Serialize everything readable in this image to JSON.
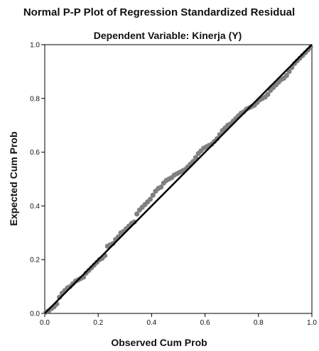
{
  "chart_data": {
    "type": "scatter",
    "title": "Normal P-P Plot of Regression Standardized Residual",
    "subtitle": "Dependent Variable: Kinerja (Y)",
    "xlabel": "Observed Cum Prob",
    "ylabel": "Expected Cum Prob",
    "xlim": [
      0.0,
      1.0
    ],
    "ylim": [
      0.0,
      1.0
    ],
    "x_ticks": [
      "0.0",
      "0.2",
      "0.4",
      "0.6",
      "0.8",
      "1.0"
    ],
    "y_ticks": [
      "0.0",
      "0.2",
      "0.4",
      "0.6",
      "0.8",
      "1.0"
    ],
    "grid": false,
    "reference_line": {
      "x": [
        0.0,
        1.0
      ],
      "y": [
        0.0,
        1.0
      ],
      "color": "#000000"
    },
    "point_color": "#808080",
    "points": [
      [
        0.005,
        0.005
      ],
      [
        0.015,
        0.01
      ],
      [
        0.025,
        0.018
      ],
      [
        0.035,
        0.025
      ],
      [
        0.045,
        0.035
      ],
      [
        0.055,
        0.06
      ],
      [
        0.065,
        0.075
      ],
      [
        0.075,
        0.085
      ],
      [
        0.085,
        0.095
      ],
      [
        0.095,
        0.1
      ],
      [
        0.105,
        0.11
      ],
      [
        0.115,
        0.12
      ],
      [
        0.125,
        0.125
      ],
      [
        0.135,
        0.13
      ],
      [
        0.145,
        0.135
      ],
      [
        0.155,
        0.15
      ],
      [
        0.165,
        0.16
      ],
      [
        0.175,
        0.17
      ],
      [
        0.185,
        0.18
      ],
      [
        0.195,
        0.19
      ],
      [
        0.205,
        0.2
      ],
      [
        0.215,
        0.205
      ],
      [
        0.225,
        0.215
      ],
      [
        0.235,
        0.25
      ],
      [
        0.245,
        0.255
      ],
      [
        0.255,
        0.26
      ],
      [
        0.265,
        0.275
      ],
      [
        0.275,
        0.285
      ],
      [
        0.285,
        0.3
      ],
      [
        0.295,
        0.305
      ],
      [
        0.305,
        0.315
      ],
      [
        0.315,
        0.325
      ],
      [
        0.325,
        0.335
      ],
      [
        0.335,
        0.34
      ],
      [
        0.345,
        0.37
      ],
      [
        0.355,
        0.385
      ],
      [
        0.365,
        0.395
      ],
      [
        0.375,
        0.405
      ],
      [
        0.385,
        0.415
      ],
      [
        0.395,
        0.425
      ],
      [
        0.405,
        0.44
      ],
      [
        0.415,
        0.455
      ],
      [
        0.425,
        0.465
      ],
      [
        0.435,
        0.47
      ],
      [
        0.445,
        0.485
      ],
      [
        0.455,
        0.495
      ],
      [
        0.465,
        0.5
      ],
      [
        0.475,
        0.505
      ],
      [
        0.485,
        0.515
      ],
      [
        0.495,
        0.52
      ],
      [
        0.505,
        0.525
      ],
      [
        0.515,
        0.53
      ],
      [
        0.525,
        0.535
      ],
      [
        0.535,
        0.545
      ],
      [
        0.545,
        0.555
      ],
      [
        0.555,
        0.565
      ],
      [
        0.565,
        0.58
      ],
      [
        0.575,
        0.595
      ],
      [
        0.585,
        0.605
      ],
      [
        0.595,
        0.615
      ],
      [
        0.605,
        0.62
      ],
      [
        0.615,
        0.625
      ],
      [
        0.625,
        0.63
      ],
      [
        0.635,
        0.64
      ],
      [
        0.645,
        0.65
      ],
      [
        0.655,
        0.665
      ],
      [
        0.665,
        0.68
      ],
      [
        0.675,
        0.69
      ],
      [
        0.685,
        0.7
      ],
      [
        0.695,
        0.705
      ],
      [
        0.705,
        0.715
      ],
      [
        0.715,
        0.725
      ],
      [
        0.725,
        0.735
      ],
      [
        0.735,
        0.745
      ],
      [
        0.745,
        0.75
      ],
      [
        0.755,
        0.76
      ],
      [
        0.765,
        0.765
      ],
      [
        0.775,
        0.77
      ],
      [
        0.785,
        0.775
      ],
      [
        0.795,
        0.785
      ],
      [
        0.805,
        0.795
      ],
      [
        0.815,
        0.8
      ],
      [
        0.825,
        0.805
      ],
      [
        0.835,
        0.815
      ],
      [
        0.845,
        0.83
      ],
      [
        0.855,
        0.84
      ],
      [
        0.865,
        0.85
      ],
      [
        0.875,
        0.86
      ],
      [
        0.885,
        0.87
      ],
      [
        0.895,
        0.875
      ],
      [
        0.905,
        0.885
      ],
      [
        0.915,
        0.9
      ],
      [
        0.925,
        0.915
      ],
      [
        0.935,
        0.93
      ],
      [
        0.945,
        0.94
      ],
      [
        0.955,
        0.95
      ],
      [
        0.965,
        0.96
      ],
      [
        0.975,
        0.97
      ],
      [
        0.985,
        0.98
      ],
      [
        0.995,
        0.99
      ]
    ]
  }
}
